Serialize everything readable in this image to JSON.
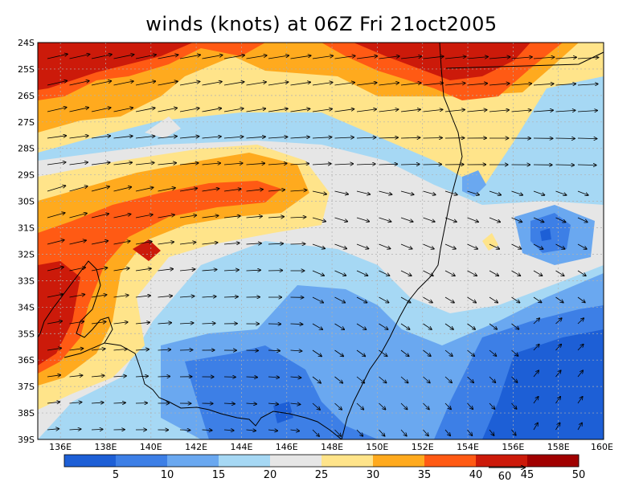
{
  "title": "winds (knots) at 06Z Fri 21oct2005",
  "lat_labels": [
    "24S",
    "25S",
    "26S",
    "27S",
    "28S",
    "29S",
    "30S",
    "31S",
    "32S",
    "33S",
    "34S",
    "35S",
    "36S",
    "37S",
    "38S",
    "39S"
  ],
  "lon_labels": [
    "136E",
    "138E",
    "140E",
    "142E",
    "144E",
    "146E",
    "148E",
    "150E",
    "152E",
    "154E",
    "156E",
    "158E",
    "160E"
  ],
  "colorbar": {
    "colors": [
      "#1d5fd6",
      "#3d7fe6",
      "#6aa8f0",
      "#a6d8f4",
      "#e6e6e6",
      "#ffe48a",
      "#ffaa1e",
      "#ff5a14",
      "#cc1a0a",
      "#a00000"
    ],
    "tick_labels": [
      "5",
      "10",
      "15",
      "20",
      "25",
      "30",
      "35",
      "40",
      "45",
      "50"
    ]
  },
  "vector_reference": {
    "label": "60"
  },
  "fields": {
    "band_colors": [
      "#cc1a0a",
      "#ff5a14",
      "#ffaa1e",
      "#ffe48a",
      "#e6e6e6",
      "#a6d8f4",
      "#6aa8f0",
      "#3d7fe6",
      "#1d5fd6"
    ],
    "map_background": "#a6d8f4",
    "coastline_color": "#000000",
    "grid_line_color": "#b0b0b0"
  }
}
